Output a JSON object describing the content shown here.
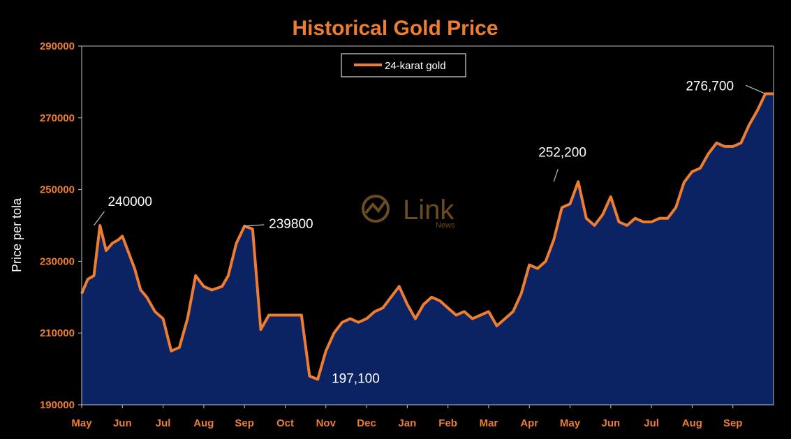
{
  "chart_data": {
    "type": "area",
    "title": "Historical Gold Price",
    "ylabel": "Price per tola",
    "ylim": [
      190000,
      290000
    ],
    "yticks": [
      "190000",
      "210000",
      "230000",
      "250000",
      "270000",
      "290000"
    ],
    "ytick_values": [
      190000,
      210000,
      230000,
      250000,
      270000,
      290000
    ],
    "x_months": [
      "May",
      "Jun",
      "Jul",
      "Aug",
      "Sep",
      "Oct",
      "Nov",
      "Dec",
      "Jan",
      "Feb",
      "Mar",
      "Apr",
      "May",
      "Jun",
      "Jul",
      "Aug",
      "Sep"
    ],
    "legend": {
      "position": "top-center",
      "label": "24-karat gold"
    },
    "grid": false,
    "colors": {
      "line": "#ED7D31",
      "fill": "#0C2363",
      "text": "#ED7D31",
      "background": "#000000"
    },
    "series": [
      {
        "name": "24-karat gold",
        "x": [
          0,
          0.15,
          0.3,
          0.45,
          0.6,
          0.75,
          0.9,
          1.0,
          1.1,
          1.2,
          1.3,
          1.45,
          1.6,
          1.8,
          2.0,
          2.2,
          2.4,
          2.6,
          2.8,
          3.0,
          3.2,
          3.45,
          3.6,
          3.8,
          4.0,
          4.2,
          4.4,
          4.6,
          4.8,
          5.0,
          5.2,
          5.4,
          5.6,
          5.8,
          6.0,
          6.2,
          6.4,
          6.6,
          6.8,
          7.0,
          7.2,
          7.4,
          7.6,
          7.8,
          8.0,
          8.2,
          8.4,
          8.6,
          8.8,
          9.0,
          9.2,
          9.4,
          9.6,
          9.8,
          10.0,
          10.2,
          10.4,
          10.6,
          10.8,
          11.0,
          11.2,
          11.4,
          11.6,
          11.8,
          12.0,
          12.2,
          12.4,
          12.6,
          12.8,
          13.0,
          13.2,
          13.4,
          13.6,
          13.8,
          14.0,
          14.2,
          14.4,
          14.6,
          14.8,
          15.0,
          15.2,
          15.4,
          15.6,
          15.8,
          16.0,
          16.2,
          16.4,
          16.6,
          16.8,
          17.0
        ],
        "values": [
          221000,
          225000,
          226000,
          240000,
          233000,
          235000,
          236000,
          237000,
          234000,
          231000,
          228000,
          222000,
          220000,
          216000,
          214000,
          205000,
          206000,
          214000,
          226000,
          223000,
          222000,
          223000,
          226000,
          235000,
          239800,
          239000,
          211000,
          215000,
          215000,
          215000,
          215000,
          215000,
          198000,
          197100,
          205000,
          210000,
          213000,
          214000,
          213000,
          214000,
          216000,
          217000,
          220000,
          223000,
          218000,
          214000,
          218000,
          220000,
          219000,
          217000,
          215000,
          216000,
          214000,
          215000,
          216000,
          212000,
          214000,
          216000,
          221000,
          229000,
          228000,
          230000,
          236000,
          245000,
          246000,
          252200,
          242000,
          240000,
          243000,
          248000,
          241000,
          240000,
          242000,
          241000,
          241000,
          242000,
          242000,
          245000,
          252000,
          255000,
          256000,
          260000,
          263000,
          262000,
          262000,
          263000,
          268000,
          272000,
          276700,
          276700
        ]
      }
    ],
    "annotations": [
      {
        "text": "240000",
        "x": 0.3,
        "y": 240000
      },
      {
        "text": "239800",
        "x": 4.0,
        "y": 239800
      },
      {
        "text": "197,100",
        "x": 5.8,
        "y": 197100
      },
      {
        "text": "252,200",
        "x": 11.6,
        "y": 252200
      },
      {
        "text": "276,700",
        "x": 16.8,
        "y": 276700
      }
    ]
  },
  "watermark": {
    "brand": "Link",
    "sub": "News"
  }
}
